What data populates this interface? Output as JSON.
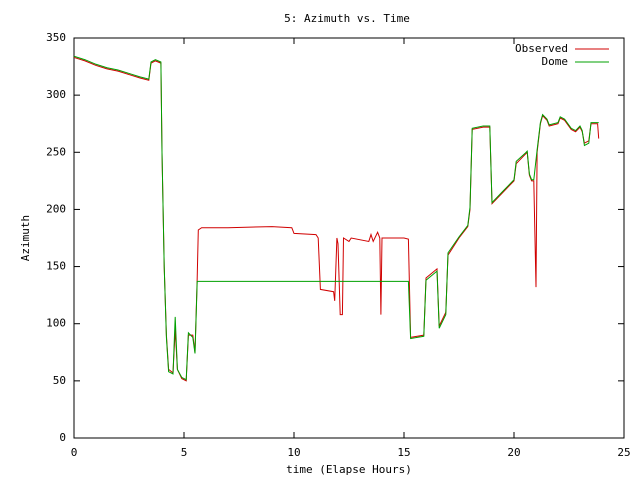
{
  "chart_data": {
    "type": "line",
    "title": "5: Azimuth vs. Time",
    "xlabel": "time (Elapse Hours)",
    "ylabel": "Azimuth",
    "xlim": [
      0,
      25
    ],
    "xticks": [
      0,
      5,
      10,
      15,
      20,
      25
    ],
    "ylim": [
      0,
      350
    ],
    "yticks": [
      0,
      50,
      100,
      150,
      200,
      250,
      300,
      350
    ],
    "legend": "top-right",
    "series": [
      {
        "name": "Observed",
        "color": "#d00000",
        "x": [
          0,
          0.5,
          1,
          1.5,
          2,
          2.5,
          3,
          3.4,
          3.5,
          3.7,
          3.95,
          4.0,
          4.1,
          4.2,
          4.3,
          4.5,
          4.6,
          4.7,
          4.9,
          5.1,
          5.2,
          5.4,
          5.5,
          5.6,
          5.65,
          5.8,
          7,
          9,
          9.9,
          10,
          11,
          11.1,
          11.2,
          11.8,
          11.85,
          11.95,
          12.0,
          12.1,
          12.2,
          12.25,
          12.5,
          12.6,
          13.4,
          13.5,
          13.6,
          13.8,
          13.9,
          13.95,
          14.0,
          15,
          15.2,
          15.3,
          15.6,
          15.9,
          16.0,
          16.5,
          16.6,
          16.9,
          17,
          17.5,
          17.9,
          18.0,
          18.1,
          18.6,
          18.9,
          19.0,
          19.5,
          20,
          20.1,
          20.5,
          20.6,
          20.7,
          20.8,
          20.9,
          21.0,
          21.05,
          21.2,
          21.3,
          21.5,
          21.6,
          22,
          22.1,
          22.3,
          22.6,
          22.8,
          23.0,
          23.1,
          23.2,
          23.4,
          23.5,
          23.8,
          23.85
        ],
        "values": [
          333,
          330,
          326,
          323,
          321,
          318,
          315,
          313,
          328,
          330,
          328,
          250,
          150,
          90,
          60,
          57,
          95,
          60,
          52,
          50,
          90,
          90,
          75,
          140,
          182,
          184,
          184,
          185,
          184,
          179,
          178,
          175,
          130,
          128,
          120,
          175,
          170,
          108,
          108,
          175,
          172,
          175,
          172,
          178,
          172,
          180,
          175,
          108,
          175,
          175,
          174,
          88,
          89,
          90,
          140,
          148,
          98,
          110,
          160,
          175,
          185,
          200,
          270,
          272,
          272,
          205,
          215,
          225,
          240,
          248,
          250,
          230,
          225,
          225,
          132,
          250,
          275,
          282,
          278,
          273,
          275,
          280,
          278,
          270,
          268,
          272,
          268,
          258,
          260,
          275,
          275,
          262
        ]
      },
      {
        "name": "Dome",
        "color": "#00a000",
        "x": [
          0,
          0.5,
          1,
          1.5,
          2,
          2.5,
          3,
          3.4,
          3.5,
          3.7,
          3.95,
          4.0,
          4.1,
          4.2,
          4.3,
          4.5,
          4.6,
          4.7,
          4.9,
          5.1,
          5.2,
          5.4,
          5.5,
          5.6,
          15.2,
          15.3,
          15.6,
          15.9,
          16.0,
          16.5,
          16.6,
          16.9,
          17,
          17.5,
          17.9,
          18.0,
          18.1,
          18.6,
          18.9,
          19.0,
          19.5,
          20,
          20.1,
          20.5,
          20.6,
          20.7,
          20.8,
          20.9,
          21.05,
          21.2,
          21.3,
          21.5,
          21.6,
          22,
          22.1,
          22.3,
          22.6,
          22.8,
          23.0,
          23.1,
          23.2,
          23.4,
          23.5,
          23.8,
          23.85
        ],
        "values": [
          334,
          331,
          327,
          324,
          322,
          319,
          316,
          314,
          329,
          331,
          329,
          250,
          150,
          88,
          58,
          56,
          106,
          60,
          53,
          51,
          92,
          88,
          74,
          137,
          137,
          87,
          88,
          89,
          138,
          146,
          96,
          108,
          162,
          176,
          186,
          202,
          271,
          273,
          273,
          206,
          216,
          226,
          242,
          249,
          251,
          231,
          226,
          226,
          252,
          276,
          283,
          279,
          274,
          276,
          281,
          279,
          271,
          269,
          273,
          269,
          256,
          258,
          276,
          276,
          276
        ]
      }
    ]
  }
}
